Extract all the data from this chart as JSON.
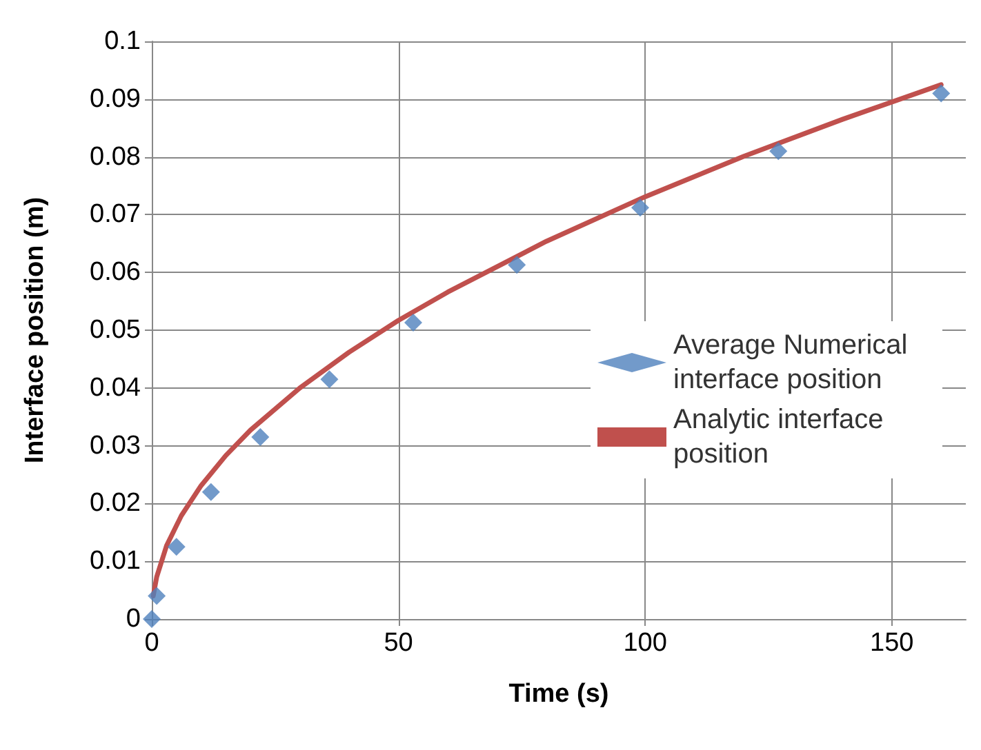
{
  "chart_data": {
    "type": "scatter",
    "xlabel": "Time (s)",
    "ylabel": "Interface position (m)",
    "xlim": [
      0,
      165
    ],
    "xticks": [
      0,
      50,
      100,
      150
    ],
    "ylim": [
      0,
      0.1
    ],
    "yticks": [
      0,
      0.01,
      0.02,
      0.03,
      0.04,
      0.05,
      0.06,
      0.07,
      0.08,
      0.09,
      0.1
    ],
    "grid": true,
    "legend": "right",
    "series": [
      {
        "name": "Average Numerical interface position",
        "marker": "diamond",
        "color": "#4f81bd",
        "x": [
          0,
          1,
          5,
          12,
          22,
          36,
          53,
          74,
          99,
          127,
          160
        ],
        "values": [
          0,
          0.004,
          0.0125,
          0.022,
          0.0315,
          0.0415,
          0.0513,
          0.0613,
          0.0712,
          0.081,
          0.091
        ]
      },
      {
        "name": "Analytic interface position",
        "type": "line",
        "color": "#c0504d",
        "line_style": "solid",
        "marker": "none",
        "x": [
          0.3,
          1,
          3,
          6,
          10,
          15,
          20,
          30,
          40,
          50,
          60,
          80,
          100,
          120,
          140,
          160
        ],
        "values": [
          0.004,
          0.0073,
          0.0127,
          0.0179,
          0.0231,
          0.0283,
          0.0327,
          0.04,
          0.0462,
          0.0517,
          0.0566,
          0.0654,
          0.0731,
          0.0801,
          0.0865,
          0.0925
        ]
      }
    ]
  }
}
